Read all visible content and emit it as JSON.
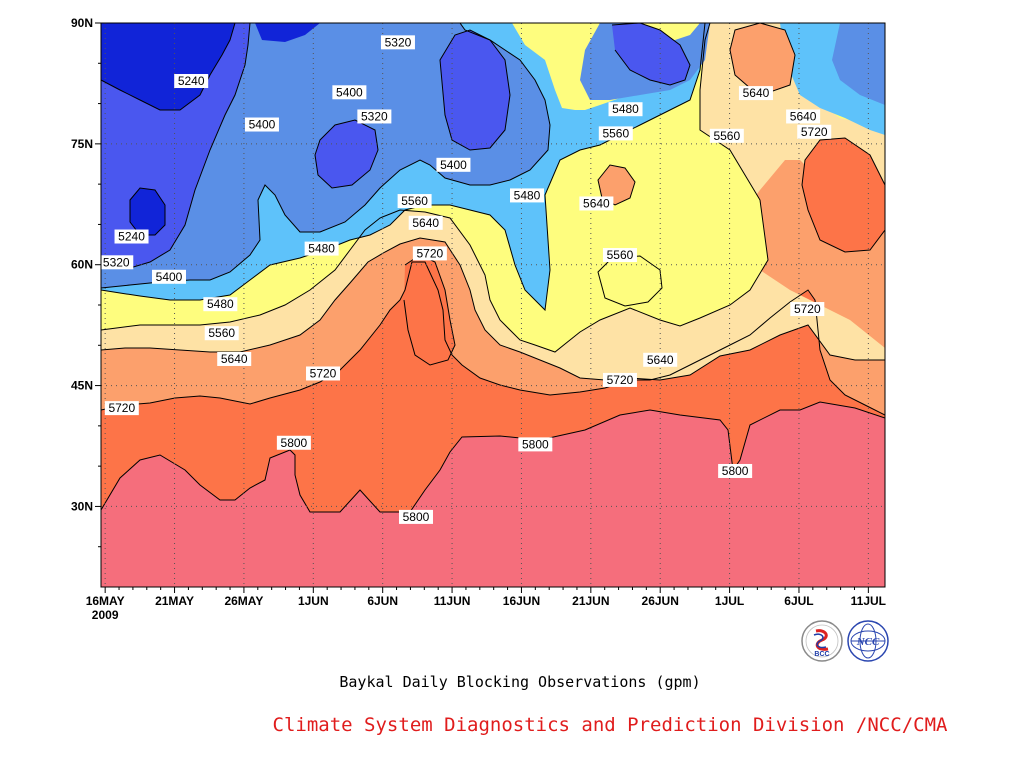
{
  "colors": {
    "credit": "#e01c1c",
    "fills": [
      "#1124d8",
      "#4a57ef",
      "#5a8fe6",
      "#5ec2fa",
      "#fefd7e",
      "#fee2a5",
      "#fca06c",
      "#fd7448",
      "#f56e7c"
    ]
  },
  "chart_data": {
    "type": "contour",
    "title": "Baykal Daily Blocking Observations (gpm)",
    "xlabel": "",
    "ylabel": "",
    "x_ticks": [
      "16MAY\n2009",
      "21MAY",
      "26MAY",
      "1JUN",
      "6JUN",
      "11JUN",
      "16JUN",
      "21JUN",
      "26JUN",
      "1JUL",
      "6JUL",
      "11JUL"
    ],
    "y_ticks": [
      "30N",
      "45N",
      "60N",
      "75N",
      "90N"
    ],
    "ylim_deg": [
      20,
      90
    ],
    "xlim_days_from_start": [
      -0.3,
      56.2
    ],
    "contour_levels_gpm": [
      5240,
      5320,
      5400,
      5480,
      5560,
      5640,
      5720,
      5800
    ],
    "contour_labels": [
      {
        "text": "5240",
        "day": 6.2,
        "lat": 82.8
      },
      {
        "text": "5240",
        "day": 1.9,
        "lat": 63.5
      },
      {
        "text": "5320",
        "day": 21.1,
        "lat": 87.6
      },
      {
        "text": "5320",
        "day": 19.4,
        "lat": 78.4
      },
      {
        "text": "5320",
        "day": 0.8,
        "lat": 60.3
      },
      {
        "text": "5400",
        "day": 17.6,
        "lat": 81.4
      },
      {
        "text": "5400",
        "day": 11.3,
        "lat": 77.4
      },
      {
        "text": "5400",
        "day": 25.1,
        "lat": 72.4
      },
      {
        "text": "5400",
        "day": 4.6,
        "lat": 58.5
      },
      {
        "text": "5480",
        "day": 37.5,
        "lat": 79.3
      },
      {
        "text": "5480",
        "day": 30.4,
        "lat": 68.6
      },
      {
        "text": "5480",
        "day": 15.6,
        "lat": 62.0
      },
      {
        "text": "5480",
        "day": 8.3,
        "lat": 55.1
      },
      {
        "text": "5560",
        "day": 36.8,
        "lat": 76.3
      },
      {
        "text": "5560",
        "day": 44.8,
        "lat": 76.0
      },
      {
        "text": "5560",
        "day": 22.3,
        "lat": 67.9
      },
      {
        "text": "5560",
        "day": 37.1,
        "lat": 61.2
      },
      {
        "text": "5560",
        "day": 8.4,
        "lat": 51.5
      },
      {
        "text": "5640",
        "day": 46.9,
        "lat": 81.3
      },
      {
        "text": "5640",
        "day": 50.3,
        "lat": 78.4
      },
      {
        "text": "5640",
        "day": 35.4,
        "lat": 67.6
      },
      {
        "text": "5640",
        "day": 23.1,
        "lat": 65.2
      },
      {
        "text": "5640",
        "day": 40.0,
        "lat": 48.2
      },
      {
        "text": "5640",
        "day": 9.3,
        "lat": 48.3
      },
      {
        "text": "5720",
        "day": 51.1,
        "lat": 76.5
      },
      {
        "text": "5720",
        "day": 23.4,
        "lat": 61.4
      },
      {
        "text": "5720",
        "day": 50.6,
        "lat": 54.5
      },
      {
        "text": "5720",
        "day": 37.1,
        "lat": 45.7
      },
      {
        "text": "5720",
        "day": 15.7,
        "lat": 46.5
      },
      {
        "text": "5720",
        "day": 1.2,
        "lat": 42.2
      },
      {
        "text": "5800",
        "day": 13.6,
        "lat": 37.9
      },
      {
        "text": "5800",
        "day": 31.0,
        "lat": 37.7
      },
      {
        "text": "5800",
        "day": 45.4,
        "lat": 34.4
      },
      {
        "text": "5800",
        "day": 22.4,
        "lat": 28.7
      }
    ]
  },
  "logos": {
    "bcc": "BCC",
    "ncc": "NCC"
  },
  "footer": {
    "credit": "Climate System Diagnostics and Prediction Division /NCC/CMA"
  }
}
